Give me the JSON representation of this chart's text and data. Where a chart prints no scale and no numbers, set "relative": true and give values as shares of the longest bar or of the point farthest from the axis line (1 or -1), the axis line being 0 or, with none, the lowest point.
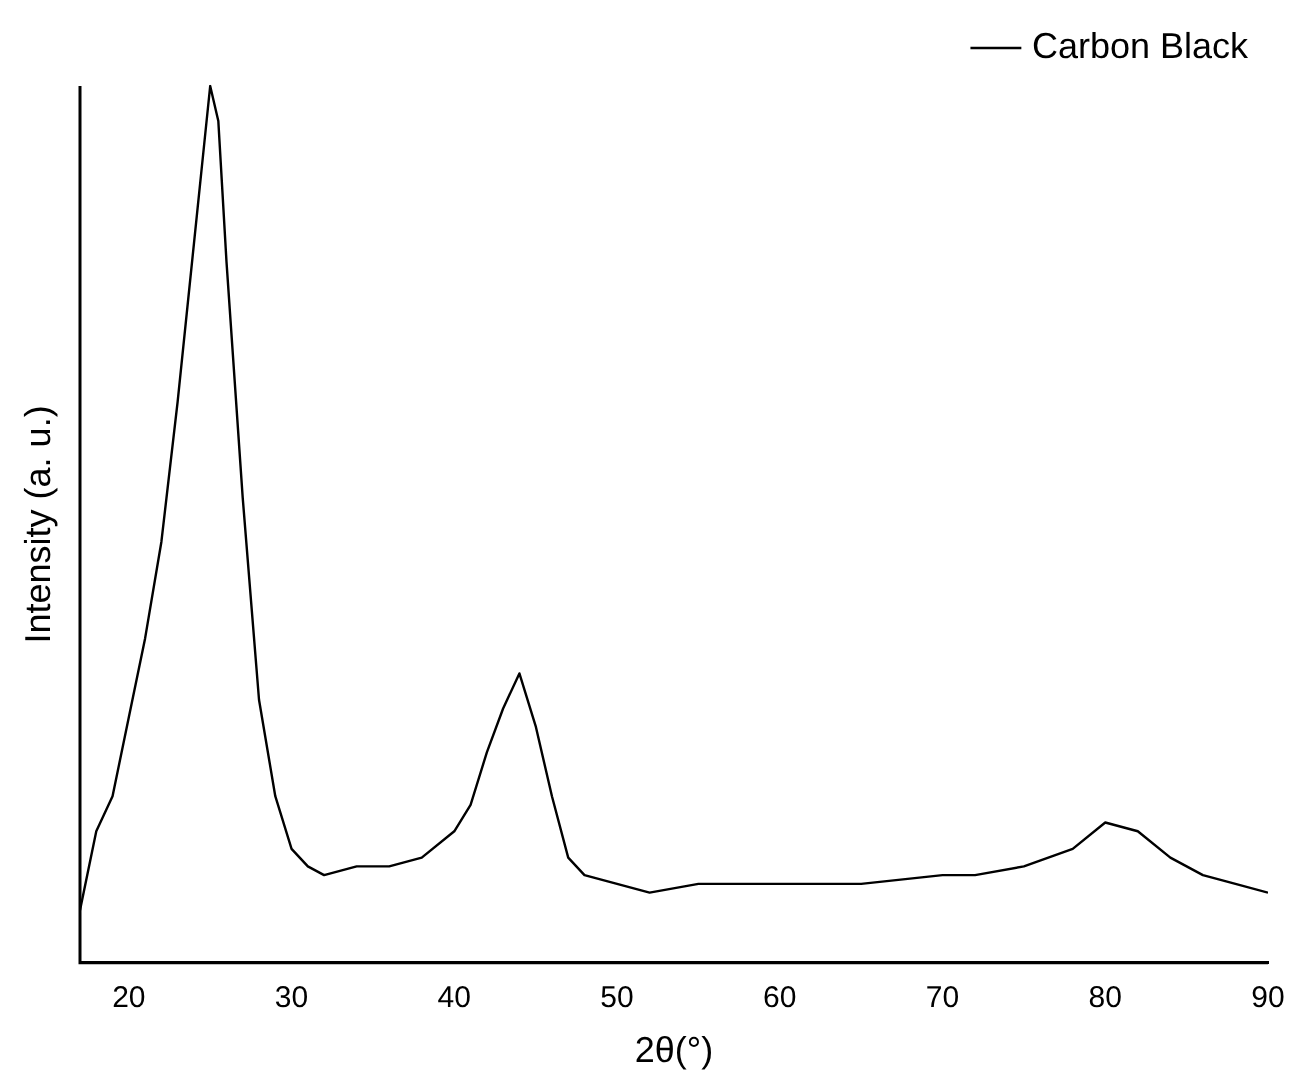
{
  "chart_data": {
    "type": "line",
    "xlabel": "2θ(°)",
    "ylabel": "Intensity (a. u.)",
    "relative": true,
    "xlim": [
      17,
      90
    ],
    "xticks": [
      20,
      30,
      40,
      50,
      60,
      70,
      80,
      90
    ],
    "legend": "top right",
    "grid": false,
    "marker": "none",
    "line_style": "solid",
    "series": [
      {
        "name": "Carbon Black",
        "color": "#000000",
        "x": [
          17,
          18,
          19,
          20,
          21,
          22,
          23,
          24,
          25,
          25.5,
          26,
          27,
          28,
          29,
          30,
          31,
          32,
          34,
          36,
          38,
          40,
          41,
          42,
          43,
          44,
          45,
          46,
          47,
          48,
          50,
          52,
          55,
          60,
          65,
          70,
          72,
          75,
          78,
          80,
          82,
          84,
          86,
          88,
          90
        ],
        "values": [
          0.06,
          0.15,
          0.19,
          0.28,
          0.37,
          0.48,
          0.64,
          0.82,
          1,
          0.96,
          0.8,
          0.53,
          0.3,
          0.19,
          0.13,
          0.11,
          0.1,
          0.11,
          0.11,
          0.12,
          0.15,
          0.18,
          0.24,
          0.29,
          0.33,
          0.27,
          0.19,
          0.12,
          0.1,
          0.09,
          0.08,
          0.09,
          0.09,
          0.09,
          0.1,
          0.1,
          0.11,
          0.13,
          0.16,
          0.15,
          0.12,
          0.1,
          0.09,
          0.08
        ]
      }
    ]
  }
}
